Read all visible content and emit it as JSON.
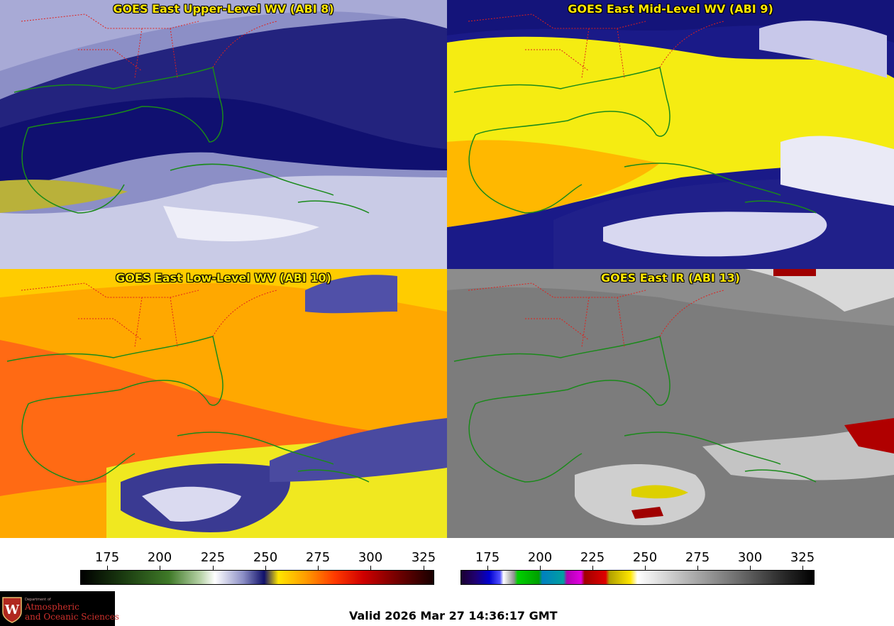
{
  "panels": [
    {
      "id": "abi8",
      "title": "GOES East Upper-Level WV (ABI 8)",
      "palette": "wv",
      "base": "#4a4fa6"
    },
    {
      "id": "abi9",
      "title": "GOES East Mid-Level WV (ABI 9)",
      "palette": "wv",
      "base": "#f2ea10"
    },
    {
      "id": "abi10",
      "title": "GOES East Low-Level WV (ABI 10)",
      "palette": "wv",
      "base": "#ffae00"
    },
    {
      "id": "abi13",
      "title": "GOES East IR (ABI 13)",
      "palette": "ir",
      "base": "#7c7c7c"
    }
  ],
  "colorbars": {
    "wv": {
      "ticks": [
        "175",
        "200",
        "225",
        "250",
        "275",
        "300",
        "325"
      ]
    },
    "ir": {
      "ticks": [
        "175",
        "200",
        "225",
        "250",
        "275",
        "300",
        "325"
      ]
    }
  },
  "colors": {
    "state_borders": "#e0201c",
    "coastlines": "#1a8a1a",
    "title_text": "#ffe600"
  },
  "logo": {
    "dept": "Department of",
    "line1": "Atmospheric",
    "line2": "and Oceanic Sciences"
  },
  "valid_time": "Valid 2026 Mar 27 14:36:17 GMT"
}
